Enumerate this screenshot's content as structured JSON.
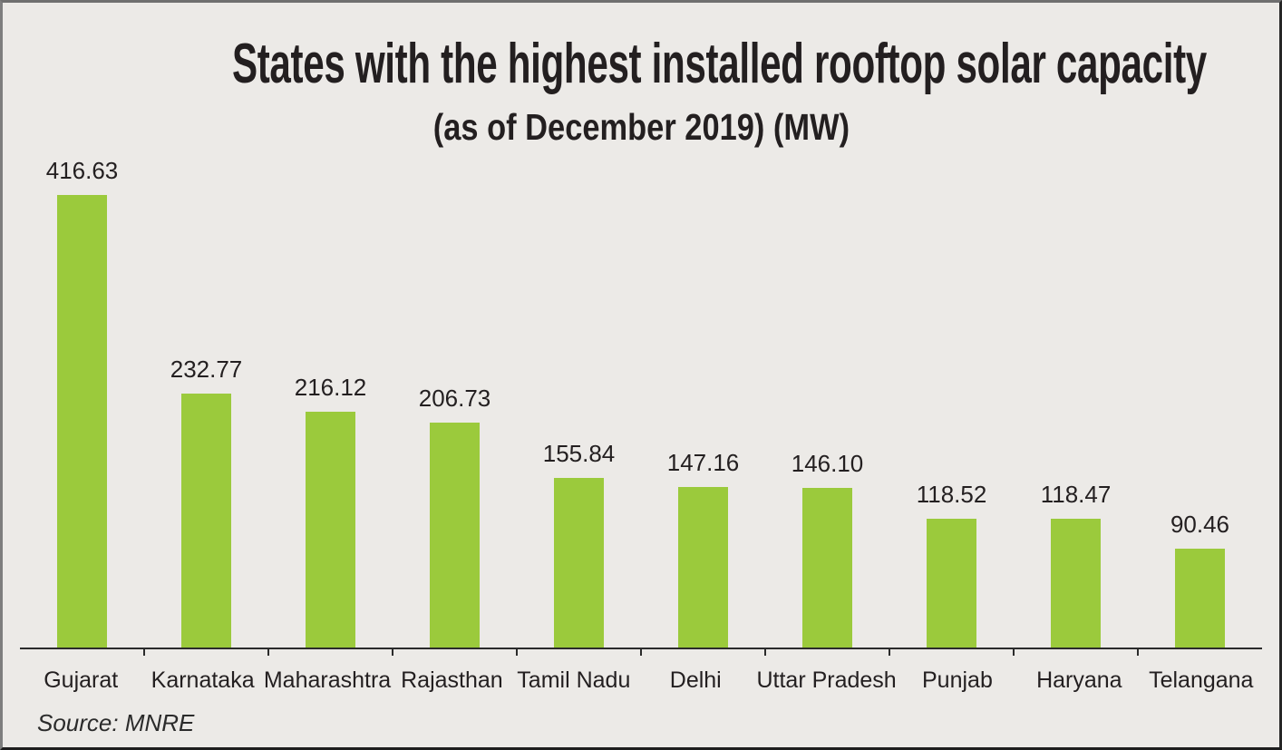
{
  "page": {
    "background_color": "#ECEAE7",
    "frame_border_color": "#4A4A4A"
  },
  "chart_data": {
    "type": "bar",
    "title": "States with the highest installed rooftop solar capacity",
    "subtitle": "(as of December 2019) (MW)",
    "unit": "MW",
    "categories": [
      "Gujarat",
      "Karnataka",
      "Maharashtra",
      "Rajasthan",
      "Tamil Nadu",
      "Delhi",
      "Uttar Pradesh",
      "Punjab",
      "Haryana",
      "Telangana"
    ],
    "values": [
      416.63,
      232.77,
      216.12,
      206.73,
      155.84,
      147.16,
      146.1,
      118.52,
      118.47,
      90.46
    ],
    "value_labels": [
      "416.63",
      "232.77",
      "216.12",
      "206.73",
      "155.84",
      "147.16",
      "146.10",
      "118.52",
      "118.47",
      "90.46"
    ],
    "bar_color": "#9BCA3C",
    "axis_color": "#2B2B2B",
    "text_color": "#231F20",
    "ylim": [
      0,
      450
    ],
    "grid": false,
    "legend": false,
    "data_labels_position": "above-bars",
    "tick_marks": "between-categories"
  },
  "source": {
    "label": "Source: MNRE"
  }
}
